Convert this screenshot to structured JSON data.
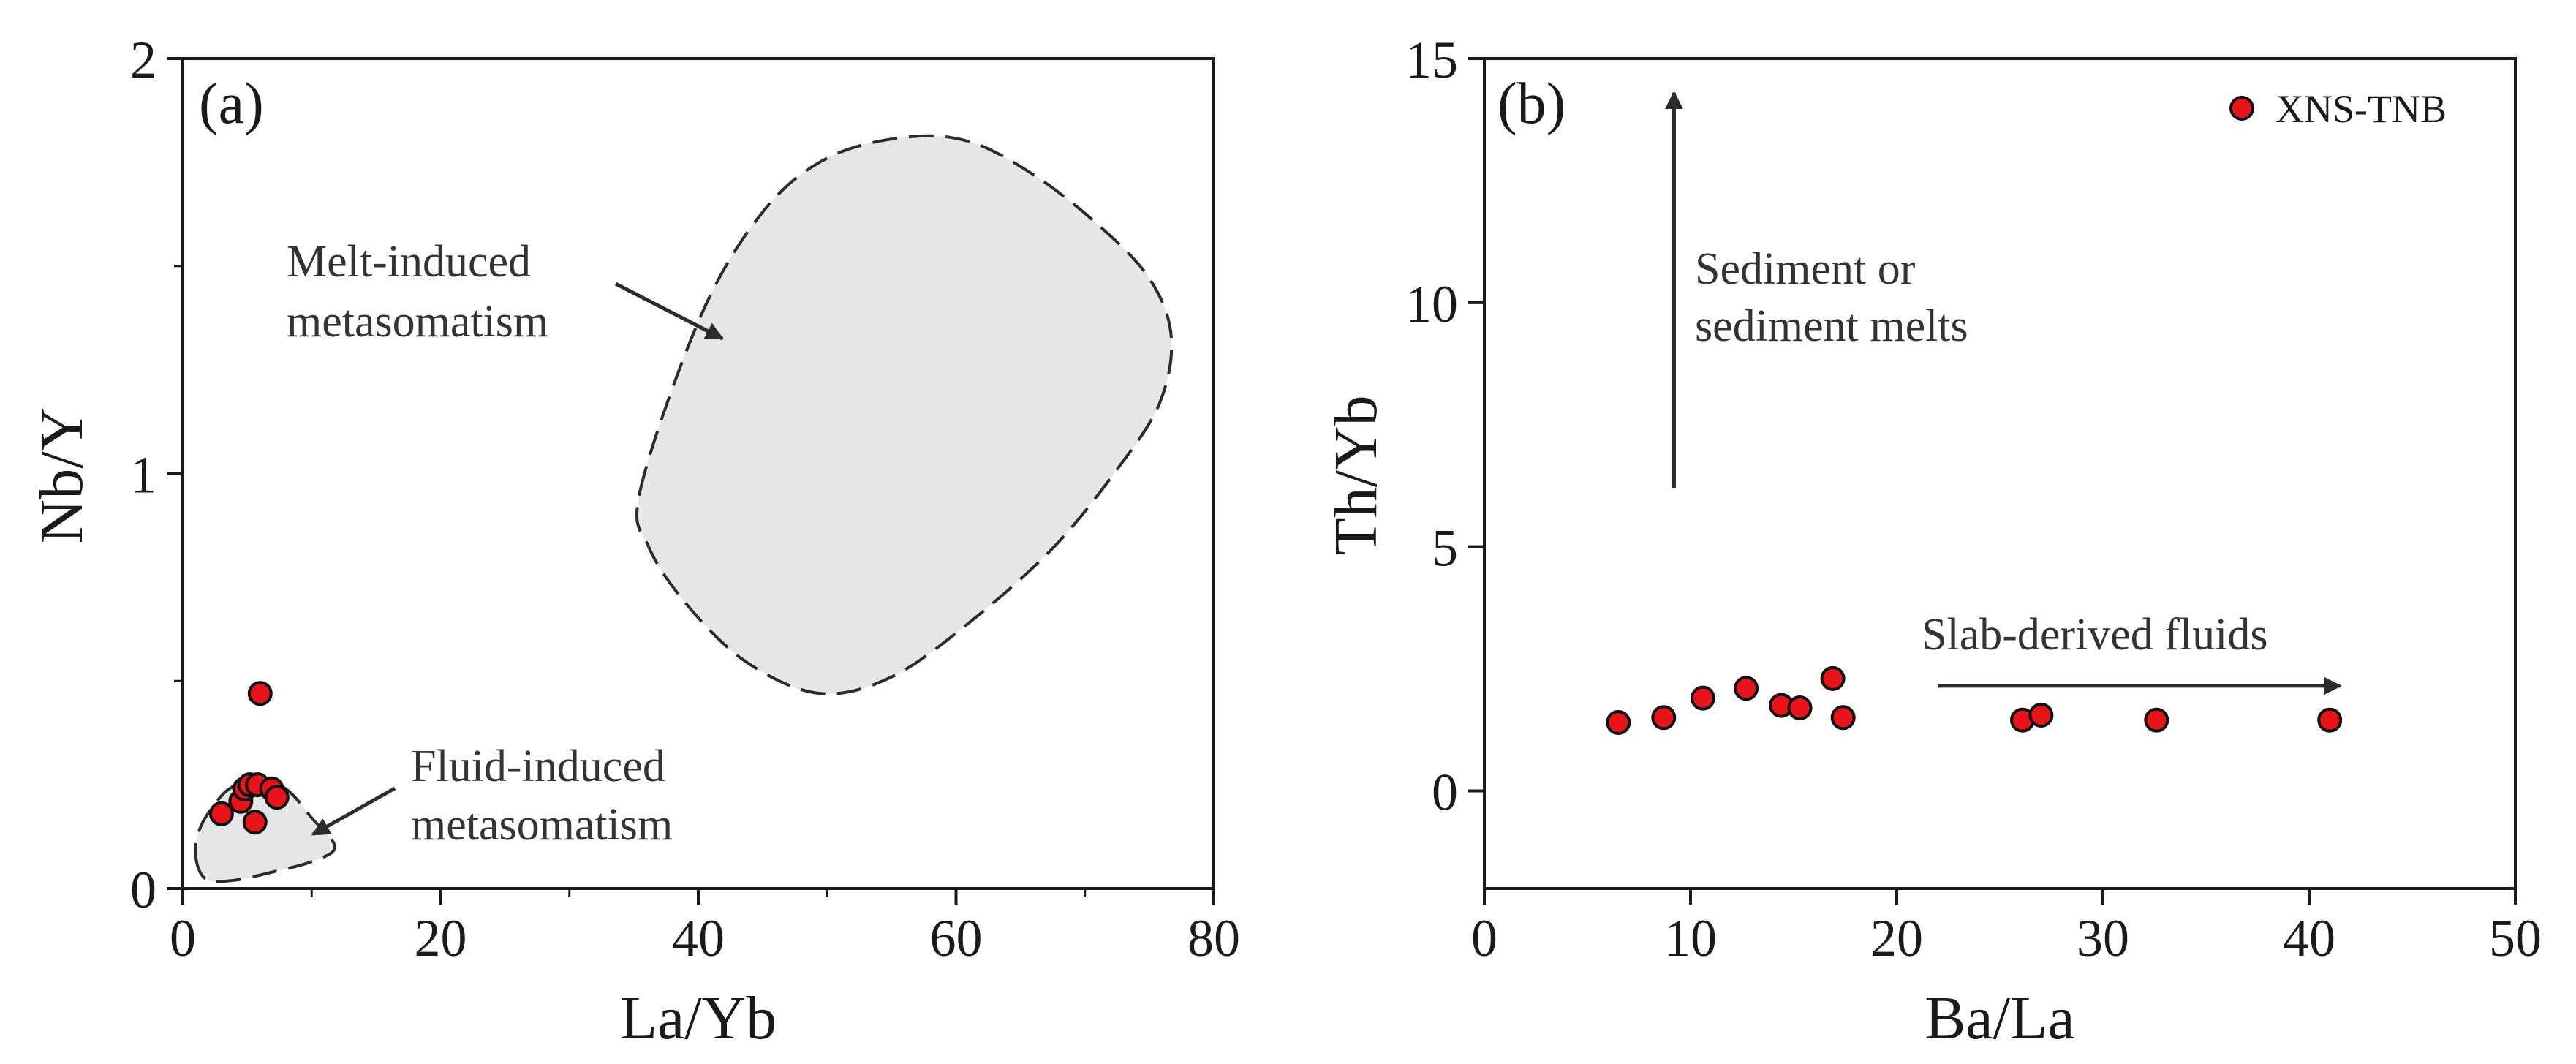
{
  "chart_data": [
    {
      "type": "scatter",
      "panel_label": "(a)",
      "xlabel": "La/Yb",
      "ylabel": "Nb/Y",
      "xlim": [
        0,
        80
      ],
      "ylim": [
        0,
        2
      ],
      "xticks": [
        0,
        20,
        40,
        60,
        80
      ],
      "xtick_labels": [
        "0",
        "20",
        "40",
        "60",
        "80"
      ],
      "yticks": [
        0,
        1,
        2
      ],
      "ytick_labels": [
        "0",
        "1",
        "2"
      ],
      "series": [
        {
          "name": "XNS-TNB",
          "color": "#e8141a",
          "points": [
            {
              "x": 6.0,
              "y": 0.47
            },
            {
              "x": 3.0,
              "y": 0.18
            },
            {
              "x": 4.5,
              "y": 0.21
            },
            {
              "x": 4.8,
              "y": 0.24
            },
            {
              "x": 5.2,
              "y": 0.25
            },
            {
              "x": 5.6,
              "y": 0.16
            },
            {
              "x": 5.8,
              "y": 0.25
            },
            {
              "x": 6.9,
              "y": 0.24
            },
            {
              "x": 7.3,
              "y": 0.22
            }
          ]
        }
      ],
      "fields": [
        {
          "name": "Melt-induced metasomatism",
          "outline": [
            [
              35.5,
              0.96
            ],
            [
              40.2,
              1.38
            ],
            [
              45.0,
              1.63
            ],
            [
              50.0,
              1.76
            ],
            [
              56.0,
              1.81
            ],
            [
              61.0,
              1.8
            ],
            [
              66.0,
              1.72
            ],
            [
              71.0,
              1.6
            ],
            [
              75.0,
              1.47
            ],
            [
              76.7,
              1.33
            ],
            [
              75.8,
              1.17
            ],
            [
              72.5,
              1.01
            ],
            [
              67.5,
              0.82
            ],
            [
              61.0,
              0.64
            ],
            [
              55.0,
              0.51
            ],
            [
              49.5,
              0.47
            ],
            [
              44.0,
              0.54
            ],
            [
              39.5,
              0.67
            ],
            [
              36.2,
              0.82
            ]
          ]
        },
        {
          "name": "Fluid-induced metasomatism",
          "outline": [
            [
              1.2,
              0.05
            ],
            [
              1.0,
              0.1
            ],
            [
              1.4,
              0.15
            ],
            [
              2.4,
              0.2
            ],
            [
              3.6,
              0.24
            ],
            [
              5.5,
              0.265
            ],
            [
              8.0,
              0.24
            ],
            [
              10.0,
              0.17
            ],
            [
              11.8,
              0.1
            ],
            [
              10.0,
              0.065
            ],
            [
              7.0,
              0.04
            ],
            [
              4.0,
              0.02
            ],
            [
              2.0,
              0.02
            ]
          ]
        }
      ],
      "annotations": [
        {
          "lines": [
            "Melt-induced",
            "metasomatism"
          ]
        },
        {
          "lines": [
            "Fluid-induced",
            "metasomatism"
          ]
        }
      ]
    },
    {
      "type": "scatter",
      "panel_label": "(b)",
      "xlabel": "Ba/La",
      "ylabel": "Th/Yb",
      "xlim": [
        0,
        50
      ],
      "ylim": [
        -2,
        15
      ],
      "xticks": [
        0,
        10,
        20,
        30,
        40,
        50
      ],
      "xtick_labels": [
        "0",
        "10",
        "20",
        "30",
        "40",
        "50"
      ],
      "yticks": [
        0,
        5,
        10,
        15
      ],
      "ytick_labels": [
        "0",
        "5",
        "10",
        "15"
      ],
      "legend": {
        "position": "top-right",
        "entries": [
          "XNS-TNB"
        ]
      },
      "series": [
        {
          "name": "XNS-TNB",
          "color": "#e8141a",
          "points": [
            {
              "x": 6.5,
              "y": 1.4
            },
            {
              "x": 8.7,
              "y": 1.5
            },
            {
              "x": 10.6,
              "y": 1.9
            },
            {
              "x": 12.7,
              "y": 2.1
            },
            {
              "x": 14.4,
              "y": 1.75
            },
            {
              "x": 15.3,
              "y": 1.7
            },
            {
              "x": 16.9,
              "y": 2.3
            },
            {
              "x": 17.4,
              "y": 1.5
            },
            {
              "x": 26.1,
              "y": 1.45
            },
            {
              "x": 27.0,
              "y": 1.55
            },
            {
              "x": 32.6,
              "y": 1.45
            },
            {
              "x": 41.0,
              "y": 1.45
            }
          ]
        }
      ],
      "arrows": [
        {
          "name": "sediment-arrow",
          "from": [
            9.2,
            6.2
          ],
          "to": [
            9.2,
            14.3
          ]
        },
        {
          "name": "slab-fluids-arrow",
          "from": [
            22.0,
            2.15
          ],
          "to": [
            41.5,
            2.15
          ]
        }
      ],
      "annotations": [
        {
          "lines": [
            "Sediment or",
            "sediment melts"
          ]
        },
        {
          "lines": [
            "Slab-derived fluids"
          ]
        }
      ]
    }
  ]
}
